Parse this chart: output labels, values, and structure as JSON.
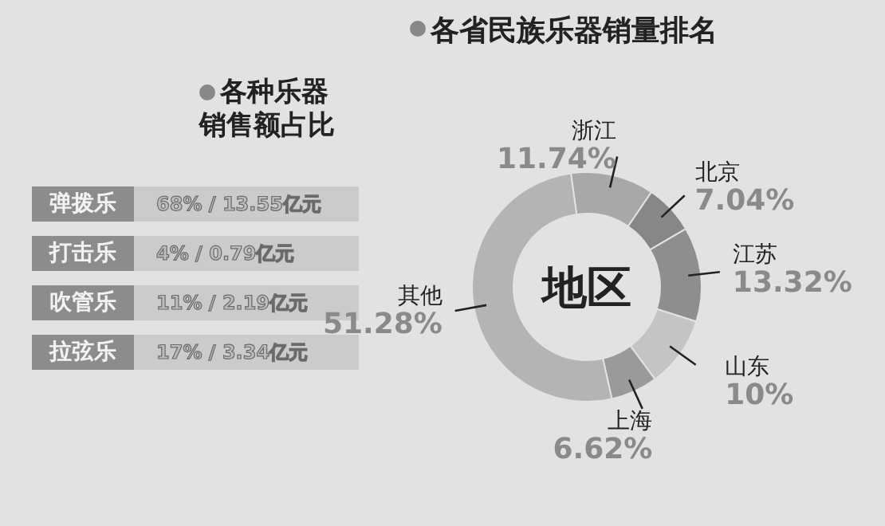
{
  "chart_data": [
    {
      "type": "other",
      "title": "各种乐器销售额占比",
      "annotations": [
        "弹拨乐",
        "68% / 13.55亿元",
        "打击乐",
        "4% / 0.79亿元",
        "吹管乐",
        "11% / 2.19亿元",
        "拉弦乐",
        "17% / 3.34亿元"
      ]
    },
    {
      "type": "donut",
      "title": "各省民族乐器销量排名",
      "categories": [
        "浙江",
        "北京",
        "江苏",
        "山东",
        "上海",
        "其他"
      ],
      "values": [
        11.74,
        7.04,
        13.32,
        10,
        6.62,
        51.28
      ],
      "colors": [
        "#a8a8a8",
        "#878787",
        "#8e8e8e",
        "#c4c4c4",
        "#9a9a9a",
        "#b4b4b4"
      ],
      "value_labels": [
        "11.74%",
        "7.04%",
        "13.32%",
        "10%",
        "6.62%",
        "51.28%"
      ],
      "legend": false,
      "annotations": [
        "地区"
      ]
    }
  ]
}
